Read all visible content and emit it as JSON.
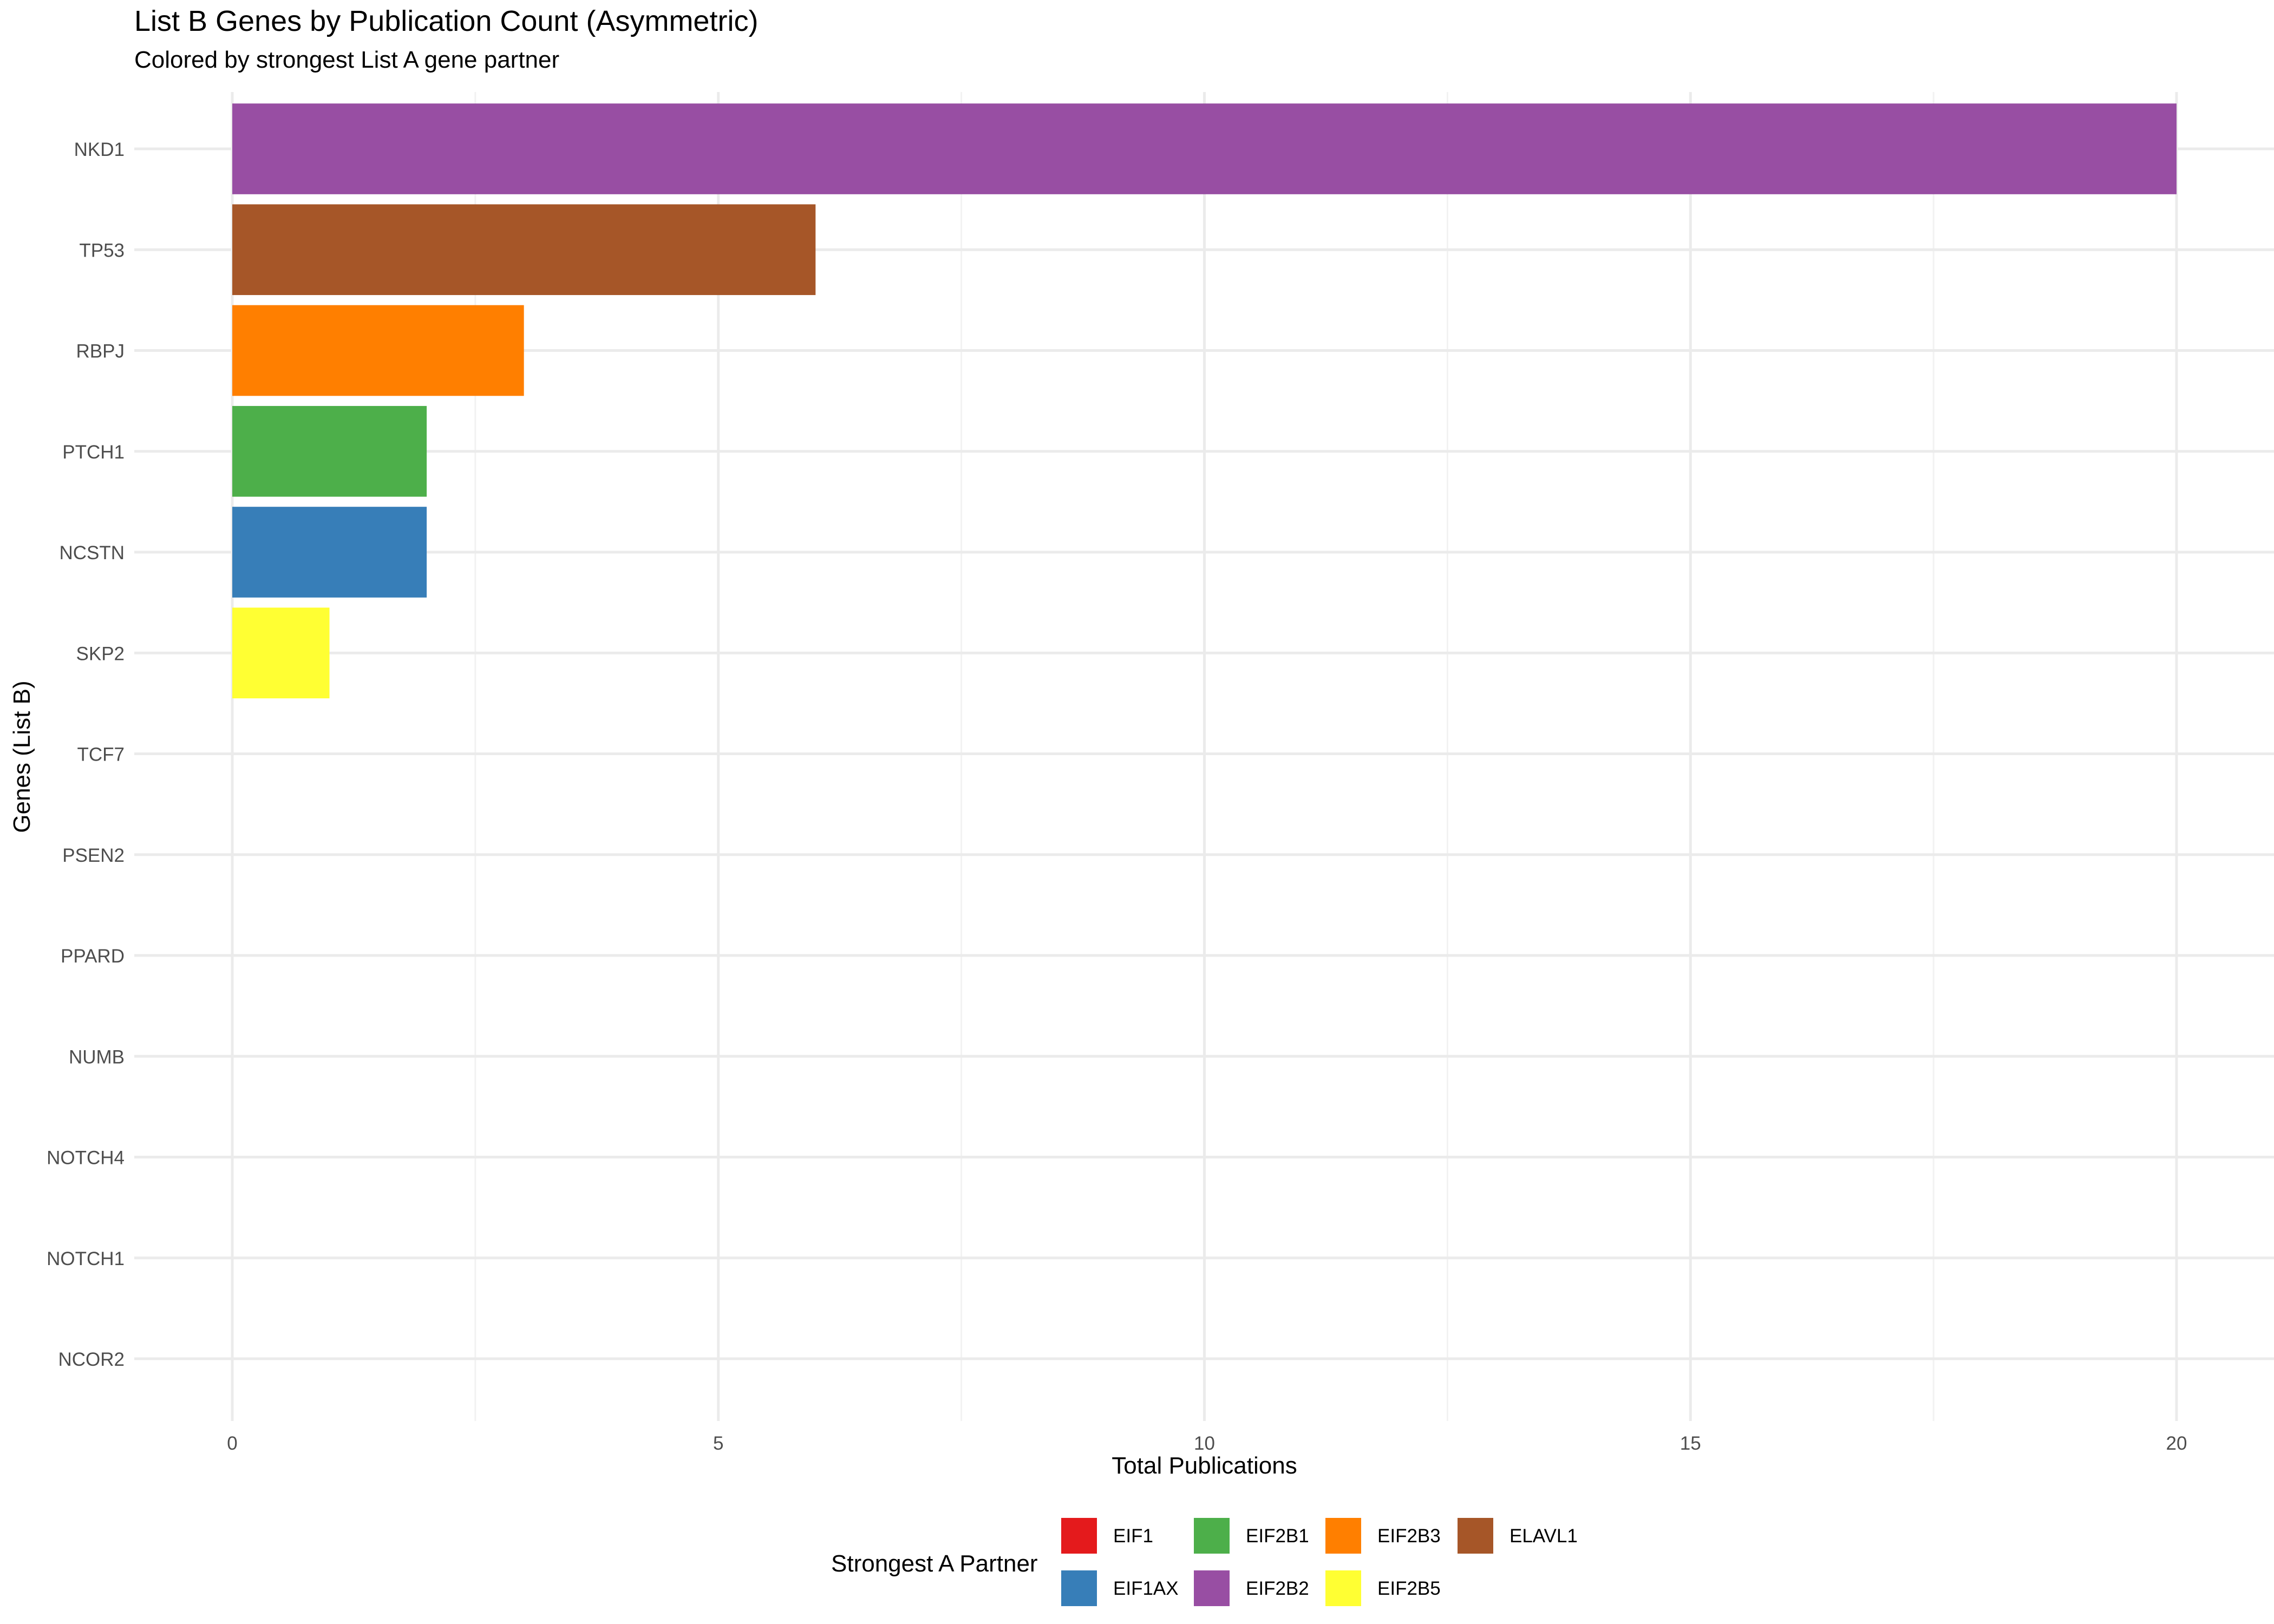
{
  "chart_data": {
    "type": "bar",
    "orientation": "horizontal",
    "title": "List B Genes by Publication Count (Asymmetric)",
    "subtitle": "Colored by strongest List A gene partner",
    "xlabel": "Total Publications",
    "ylabel": "Genes (List B)",
    "xlim": [
      0,
      20
    ],
    "xticks": [
      0,
      5,
      10,
      15,
      20
    ],
    "grid": true,
    "legend": {
      "title": "Strongest A Partner",
      "position": "bottom",
      "entries": [
        {
          "label": "EIF1",
          "color": "#E41A1C"
        },
        {
          "label": "EIF1AX",
          "color": "#377EB8"
        },
        {
          "label": "EIF2B1",
          "color": "#4DAF4A"
        },
        {
          "label": "EIF2B2",
          "color": "#984EA3"
        },
        {
          "label": "EIF2B3",
          "color": "#FF7F00"
        },
        {
          "label": "EIF2B5",
          "color": "#FFFF33"
        },
        {
          "label": "ELAVL1",
          "color": "#A65628"
        }
      ]
    },
    "categories": [
      "NKD1",
      "TP53",
      "RBPJ",
      "PTCH1",
      "NCSTN",
      "SKP2",
      "TCF7",
      "PSEN2",
      "PPARD",
      "NUMB",
      "NOTCH4",
      "NOTCH1",
      "NCOR2"
    ],
    "values": [
      20,
      6,
      3,
      2,
      2,
      1,
      0,
      0,
      0,
      0,
      0,
      0,
      0
    ],
    "partners": [
      "EIF2B2",
      "ELAVL1",
      "EIF2B3",
      "EIF2B1",
      "EIF1AX",
      "EIF2B5",
      "EIF1",
      "EIF1",
      "EIF1",
      "EIF1",
      "EIF1",
      "EIF1",
      "EIF1"
    ]
  }
}
